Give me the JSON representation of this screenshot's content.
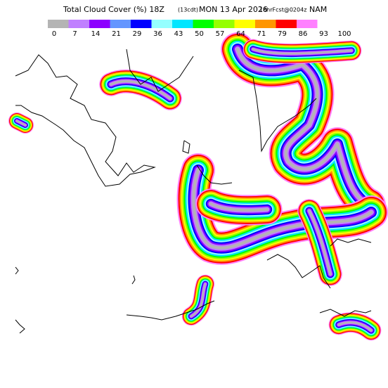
{
  "header": {
    "title": "Total Cloud Cover (%) 18Z",
    "local_time": "(13cdt)",
    "date": "MON 13 Apr 2026",
    "forecast": "18hrFcst@0204z",
    "model": "NAM"
  },
  "colorbar": {
    "labels": [
      0,
      7,
      14,
      21,
      29,
      36,
      43,
      50,
      57,
      64,
      71,
      79,
      86,
      93,
      100
    ],
    "colors": [
      "#b4b4b4",
      "#c080ff",
      "#8c00ff",
      "#6496ff",
      "#0000ff",
      "#96ffff",
      "#00e6ff",
      "#00ff00",
      "#96ff00",
      "#ffff00",
      "#ff9600",
      "#ff0000",
      "#ff80ff"
    ]
  }
}
